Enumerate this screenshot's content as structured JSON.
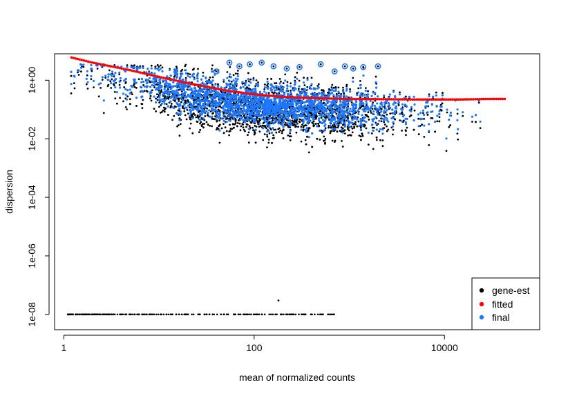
{
  "chart_data": {
    "type": "scatter",
    "title": "",
    "xlabel": "mean of normalized counts",
    "ylabel": "dispersion",
    "x_scale": "log10",
    "y_scale": "log10",
    "xlim": [
      0.8,
      100000
    ],
    "ylim": [
      3e-09,
      8
    ],
    "x_ticks": [
      {
        "value": 1,
        "label": "1"
      },
      {
        "value": 100,
        "label": "100"
      },
      {
        "value": 10000,
        "label": "10000"
      }
    ],
    "y_ticks": [
      {
        "value": 1e-08,
        "label": "1e-08"
      },
      {
        "value": 1e-06,
        "label": "1e-06"
      },
      {
        "value": 0.0001,
        "label": "1e-04"
      },
      {
        "value": 0.01,
        "label": "1e-02"
      },
      {
        "value": 1,
        "label": "1e+00"
      }
    ],
    "grid": false,
    "legend_position": "bottom-right",
    "series": [
      {
        "name": "gene-est",
        "color": "#000000",
        "description_points": [
          [
            1.2,
            0.5
          ],
          [
            2.0,
            0.25
          ],
          [
            5.0,
            0.1
          ],
          [
            10,
            0.06
          ],
          [
            30,
            0.03
          ],
          [
            60,
            0.02
          ],
          [
            100,
            0.015
          ],
          [
            100,
            0.003
          ],
          [
            200,
            0.01
          ],
          [
            400,
            0.008
          ],
          [
            1000,
            0.01
          ],
          [
            3000,
            0.03
          ],
          [
            10000,
            0.06
          ],
          [
            20000,
            0.1
          ],
          [
            45000,
            0.07
          ]
        ],
        "zero_floor_x_range": [
          1.1,
          700
        ],
        "zero_floor_y": 1e-08,
        "outlier": [
          180,
          3e-08
        ]
      },
      {
        "name": "fitted",
        "color": "#ff0000",
        "curve": [
          [
            1.2,
            6.0
          ],
          [
            2,
            4.0
          ],
          [
            5,
            2.2
          ],
          [
            10,
            1.3
          ],
          [
            20,
            0.8
          ],
          [
            50,
            0.45
          ],
          [
            100,
            0.33
          ],
          [
            200,
            0.27
          ],
          [
            500,
            0.24
          ],
          [
            1000,
            0.23
          ],
          [
            5000,
            0.22
          ],
          [
            15000,
            0.22
          ],
          [
            30000,
            0.23
          ],
          [
            45000,
            0.23
          ]
        ]
      },
      {
        "name": "final",
        "color": "#1e78ff",
        "outliers": [
          [
            40,
            2.0
          ],
          [
            55,
            4.0
          ],
          [
            70,
            3.0
          ],
          [
            90,
            3.5
          ],
          [
            120,
            4.0
          ],
          [
            160,
            3.0
          ],
          [
            220,
            2.5
          ],
          [
            300,
            2.8
          ],
          [
            500,
            3.5
          ],
          [
            700,
            2.0
          ],
          [
            900,
            3.0
          ],
          [
            1100,
            2.5
          ],
          [
            1400,
            2.8
          ],
          [
            2000,
            3.0
          ]
        ]
      }
    ]
  }
}
